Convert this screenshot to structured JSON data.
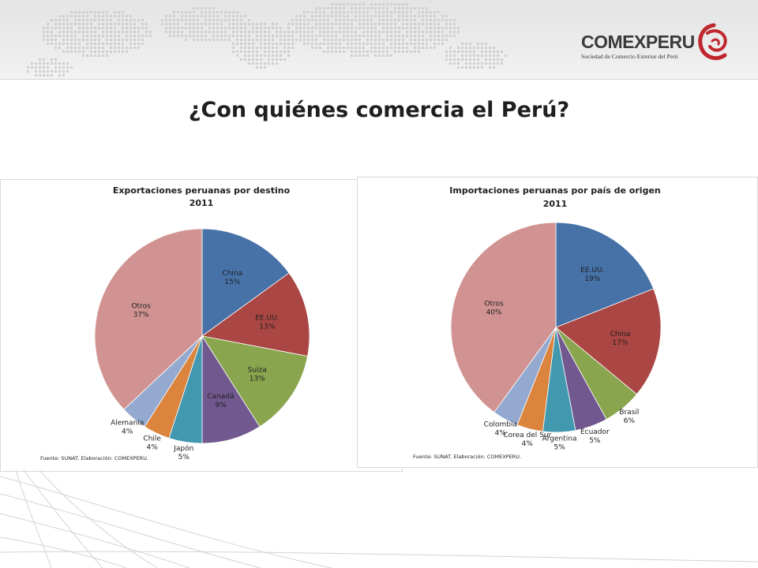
{
  "header": {
    "logo_word": "COMEXPERU",
    "logo_subtitle": "Sociedad de Comercio Exterior del Perú"
  },
  "page": {
    "title": "¿Con quiénes comercia el Perú?"
  },
  "colors": {
    "blue": "#4672A8",
    "red": "#AA4643",
    "green": "#89A54E",
    "purple": "#71588F",
    "teal": "#4198AF",
    "orange": "#DB843D",
    "lightblue": "#93A9CF",
    "pink": "#D19392"
  },
  "chart_data": [
    {
      "type": "pie",
      "title": "Exportaciones peruanas por destino",
      "subtitle": "2011",
      "source": "Fuente: SUNAT.  Elaboración: COMEXPERU.",
      "slices": [
        {
          "name": "China",
          "value": 15,
          "value_label": "15%",
          "color": "#4672A8"
        },
        {
          "name": "EE.UU.",
          "value": 13,
          "value_label": "13%",
          "color": "#AA4643"
        },
        {
          "name": "Suiza",
          "value": 13,
          "value_label": "13%",
          "color": "#89A54E"
        },
        {
          "name": "Canadá",
          "value": 9,
          "value_label": "9%",
          "color": "#71588F"
        },
        {
          "name": "Japón",
          "value": 5,
          "value_label": "5%",
          "color": "#4198AF"
        },
        {
          "name": "Chile",
          "value": 4,
          "value_label": "4%",
          "color": "#DB843D"
        },
        {
          "name": "Alemania",
          "value": 4,
          "value_label": "4%",
          "color": "#93A9CF"
        },
        {
          "name": "Otros",
          "value": 37,
          "value_label": "37%",
          "color": "#D19392"
        }
      ]
    },
    {
      "type": "pie",
      "title": "Importaciones peruanas por país de origen",
      "subtitle": "2011",
      "source": "Fuente: SUNAT.  Elaboración: COMEXPERU.",
      "slices": [
        {
          "name": "EE.UU.",
          "value": 19,
          "value_label": "19%",
          "color": "#4672A8"
        },
        {
          "name": "China",
          "value": 17,
          "value_label": "17%",
          "color": "#AA4643"
        },
        {
          "name": "Brasil",
          "value": 6,
          "value_label": "6%",
          "color": "#89A54E"
        },
        {
          "name": "Ecuador",
          "value": 5,
          "value_label": "5%",
          "color": "#71588F"
        },
        {
          "name": "Argentina",
          "value": 5,
          "value_label": "5%",
          "color": "#4198AF"
        },
        {
          "name": "Corea del Sur",
          "value": 4,
          "value_label": "4%",
          "color": "#DB843D"
        },
        {
          "name": "Colombia",
          "value": 4,
          "value_label": "4%",
          "color": "#93A9CF"
        },
        {
          "name": "Otros",
          "value": 40,
          "value_label": "40%",
          "color": "#D19392"
        }
      ]
    }
  ]
}
